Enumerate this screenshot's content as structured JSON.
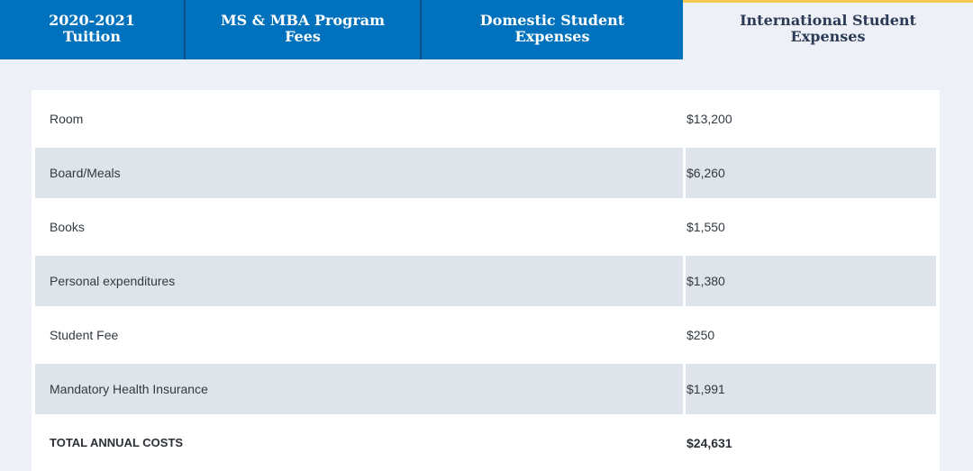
{
  "tabs": [
    {
      "label": "2020-2021\nTuition",
      "active": false
    },
    {
      "label": "MS & MBA Program\nFees",
      "active": false
    },
    {
      "label": "Domestic Student\nExpenses",
      "active": false
    },
    {
      "label": "International Student\nExpenses",
      "active": true
    }
  ],
  "table": {
    "rows": [
      {
        "label": "Room",
        "value": "$13,200"
      },
      {
        "label": "Board/Meals",
        "value": "$6,260"
      },
      {
        "label": "Books",
        "value": "$1,550"
      },
      {
        "label": "Personal expenditures",
        "value": "$1,380"
      },
      {
        "label": "Student Fee",
        "value": "$250"
      },
      {
        "label": "Mandatory Health Insurance",
        "value": "$1,991"
      }
    ],
    "total": {
      "label": "TOTAL ANNUAL COSTS",
      "value": "$24,631"
    }
  },
  "colors": {
    "tab_blue": "#0071bc",
    "tab_active_border": "#f2c94c",
    "row_shade": "#dfe3ea",
    "page_bg": "#eef0f8"
  }
}
